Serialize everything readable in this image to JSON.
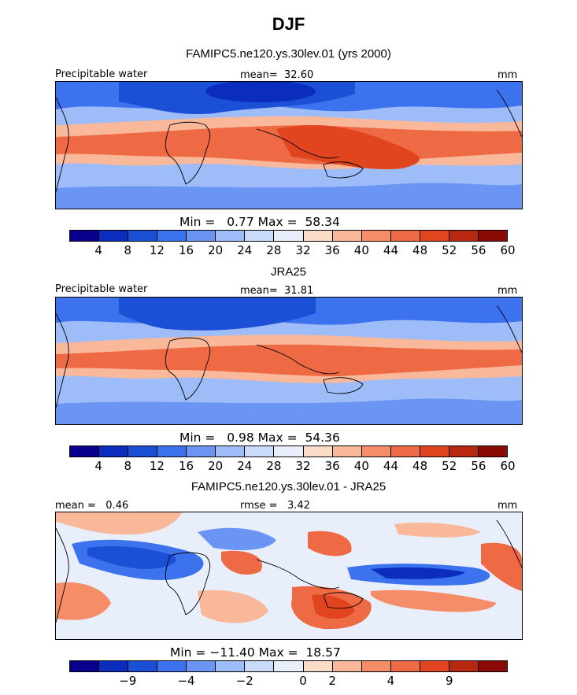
{
  "title": "DJF",
  "panels": [
    {
      "subtitle": "FAMIPC5.ne120.ys.30lev.01 (yrs 2000)",
      "left_label": "Precipitable water",
      "center_label": "mean=  32.60",
      "right_label": "mm",
      "minmax_label": "Min =   0.77 Max =  58.34",
      "min": 0.77,
      "max": 58.34,
      "mean": 32.6
    },
    {
      "subtitle": "JRA25",
      "left_label": "Precipitable water",
      "center_label": "mean=  31.81",
      "right_label": "mm",
      "minmax_label": "Min =   0.98 Max =  54.36",
      "min": 0.98,
      "max": 54.36,
      "mean": 31.81
    },
    {
      "subtitle": "FAMIPC5.ne120.ys.30lev.01 - JRA25",
      "left_label": "mean =   0.46",
      "center_label": "rmse =   3.42",
      "right_label": "mm",
      "minmax_label": "Min = −11.40 Max =  18.57",
      "min": -11.4,
      "max": 18.57,
      "mean": 0.46,
      "rmse": 3.42
    }
  ],
  "colorbar_full": {
    "ticks": [
      "4",
      "8",
      "12",
      "16",
      "20",
      "24",
      "28",
      "32",
      "36",
      "40",
      "44",
      "48",
      "52",
      "56",
      "60"
    ],
    "colors": [
      "#08008c",
      "#0a2dbe",
      "#1a4fd6",
      "#3d72ee",
      "#6a95f3",
      "#9ebcf8",
      "#c9dafb",
      "#e9effa",
      "#fbdcc8",
      "#f9b89a",
      "#f58e68",
      "#ee6a44",
      "#e0451f",
      "#b8270f",
      "#8a0a05"
    ]
  },
  "colorbar_diff": {
    "ticks": [
      "−9",
      "−4",
      "−2",
      "0",
      "2",
      "4",
      "9"
    ],
    "colors": [
      "#08008c",
      "#0a2dbe",
      "#1a4fd6",
      "#3d72ee",
      "#6a95f3",
      "#9ebcf8",
      "#c9dafb",
      "#e9effa",
      "#fbdcc8",
      "#f9b89a",
      "#f58e68",
      "#ee6a44",
      "#e0451f",
      "#b8270f",
      "#8a0a05"
    ]
  }
}
